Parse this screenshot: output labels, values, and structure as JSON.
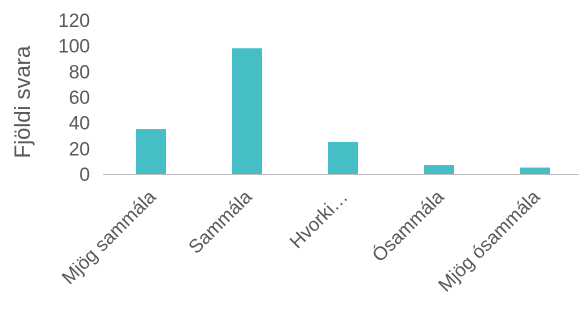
{
  "chart_data": {
    "type": "bar",
    "title": "",
    "xlabel": "",
    "ylabel": "Fjöldi svara",
    "categories": [
      "Mjög sammála",
      "Sammála",
      "Hvorki…",
      "Ósammála",
      "Mjög ósammála"
    ],
    "values": [
      35,
      98,
      25,
      7,
      5
    ],
    "ylim": [
      0,
      120
    ],
    "yticks": [
      "0",
      "20",
      "40",
      "60",
      "80",
      "100",
      "120"
    ],
    "grid": false,
    "legend": "none",
    "bar_color": "#45BFC5",
    "axis_color": "#BFBFBF"
  }
}
